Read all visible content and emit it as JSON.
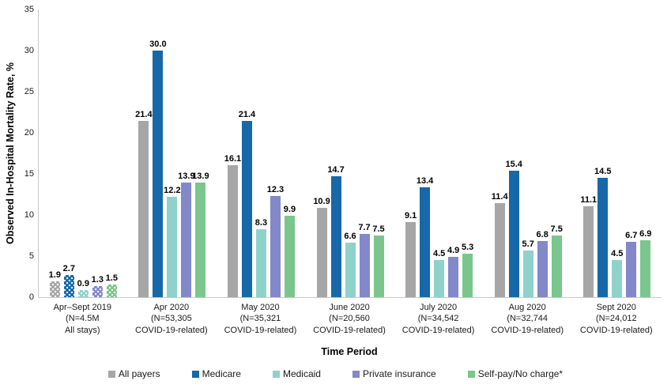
{
  "chart_data": {
    "type": "bar",
    "title": "",
    "xlabel": "Time Period",
    "ylabel": "Observed In-Hospital Mortality Rate, %",
    "ylim": [
      0,
      35
    ],
    "yticks": [
      0,
      5,
      10,
      15,
      20,
      25,
      30,
      35
    ],
    "grid": "off",
    "legend_position": "bottom",
    "patterned_group_index": 0,
    "categories": [
      {
        "lines": [
          "Apr–Sept 2019",
          "(N=4.5M",
          "All stays)"
        ]
      },
      {
        "lines": [
          "Apr 2020",
          "(N=53,305",
          "COVID-19-related)"
        ]
      },
      {
        "lines": [
          "May 2020",
          "(N=35,321",
          "COVID-19-related)"
        ]
      },
      {
        "lines": [
          "June 2020",
          "(N=20,560",
          "COVID-19-related)"
        ]
      },
      {
        "lines": [
          "July 2020",
          "(N=34,542",
          "COVID-19-related)"
        ]
      },
      {
        "lines": [
          "Aug 2020",
          "(N=32,744",
          "COVID-19-related)"
        ]
      },
      {
        "lines": [
          "Sept 2020",
          "(N=24,012",
          "COVID-19-related)"
        ]
      }
    ],
    "series": [
      {
        "name": "All payers",
        "color": "#a6a6a6",
        "values": [
          1.9,
          21.4,
          16.1,
          10.9,
          9.1,
          11.4,
          11.1
        ]
      },
      {
        "name": "Medicare",
        "color": "#1668a8",
        "values": [
          2.7,
          30.0,
          21.4,
          14.7,
          13.4,
          15.4,
          14.5
        ]
      },
      {
        "name": "Medicaid",
        "color": "#8fd2ca",
        "values": [
          0.9,
          12.2,
          8.3,
          6.6,
          4.5,
          5.7,
          4.5
        ]
      },
      {
        "name": "Private insurance",
        "color": "#8288c9",
        "values": [
          1.3,
          13.9,
          12.3,
          7.7,
          4.9,
          6.8,
          6.7
        ]
      },
      {
        "name": "Self-pay/No charge*",
        "color": "#7ac68c",
        "values": [
          1.5,
          13.9,
          9.9,
          7.5,
          5.3,
          7.5,
          6.9
        ]
      }
    ]
  }
}
